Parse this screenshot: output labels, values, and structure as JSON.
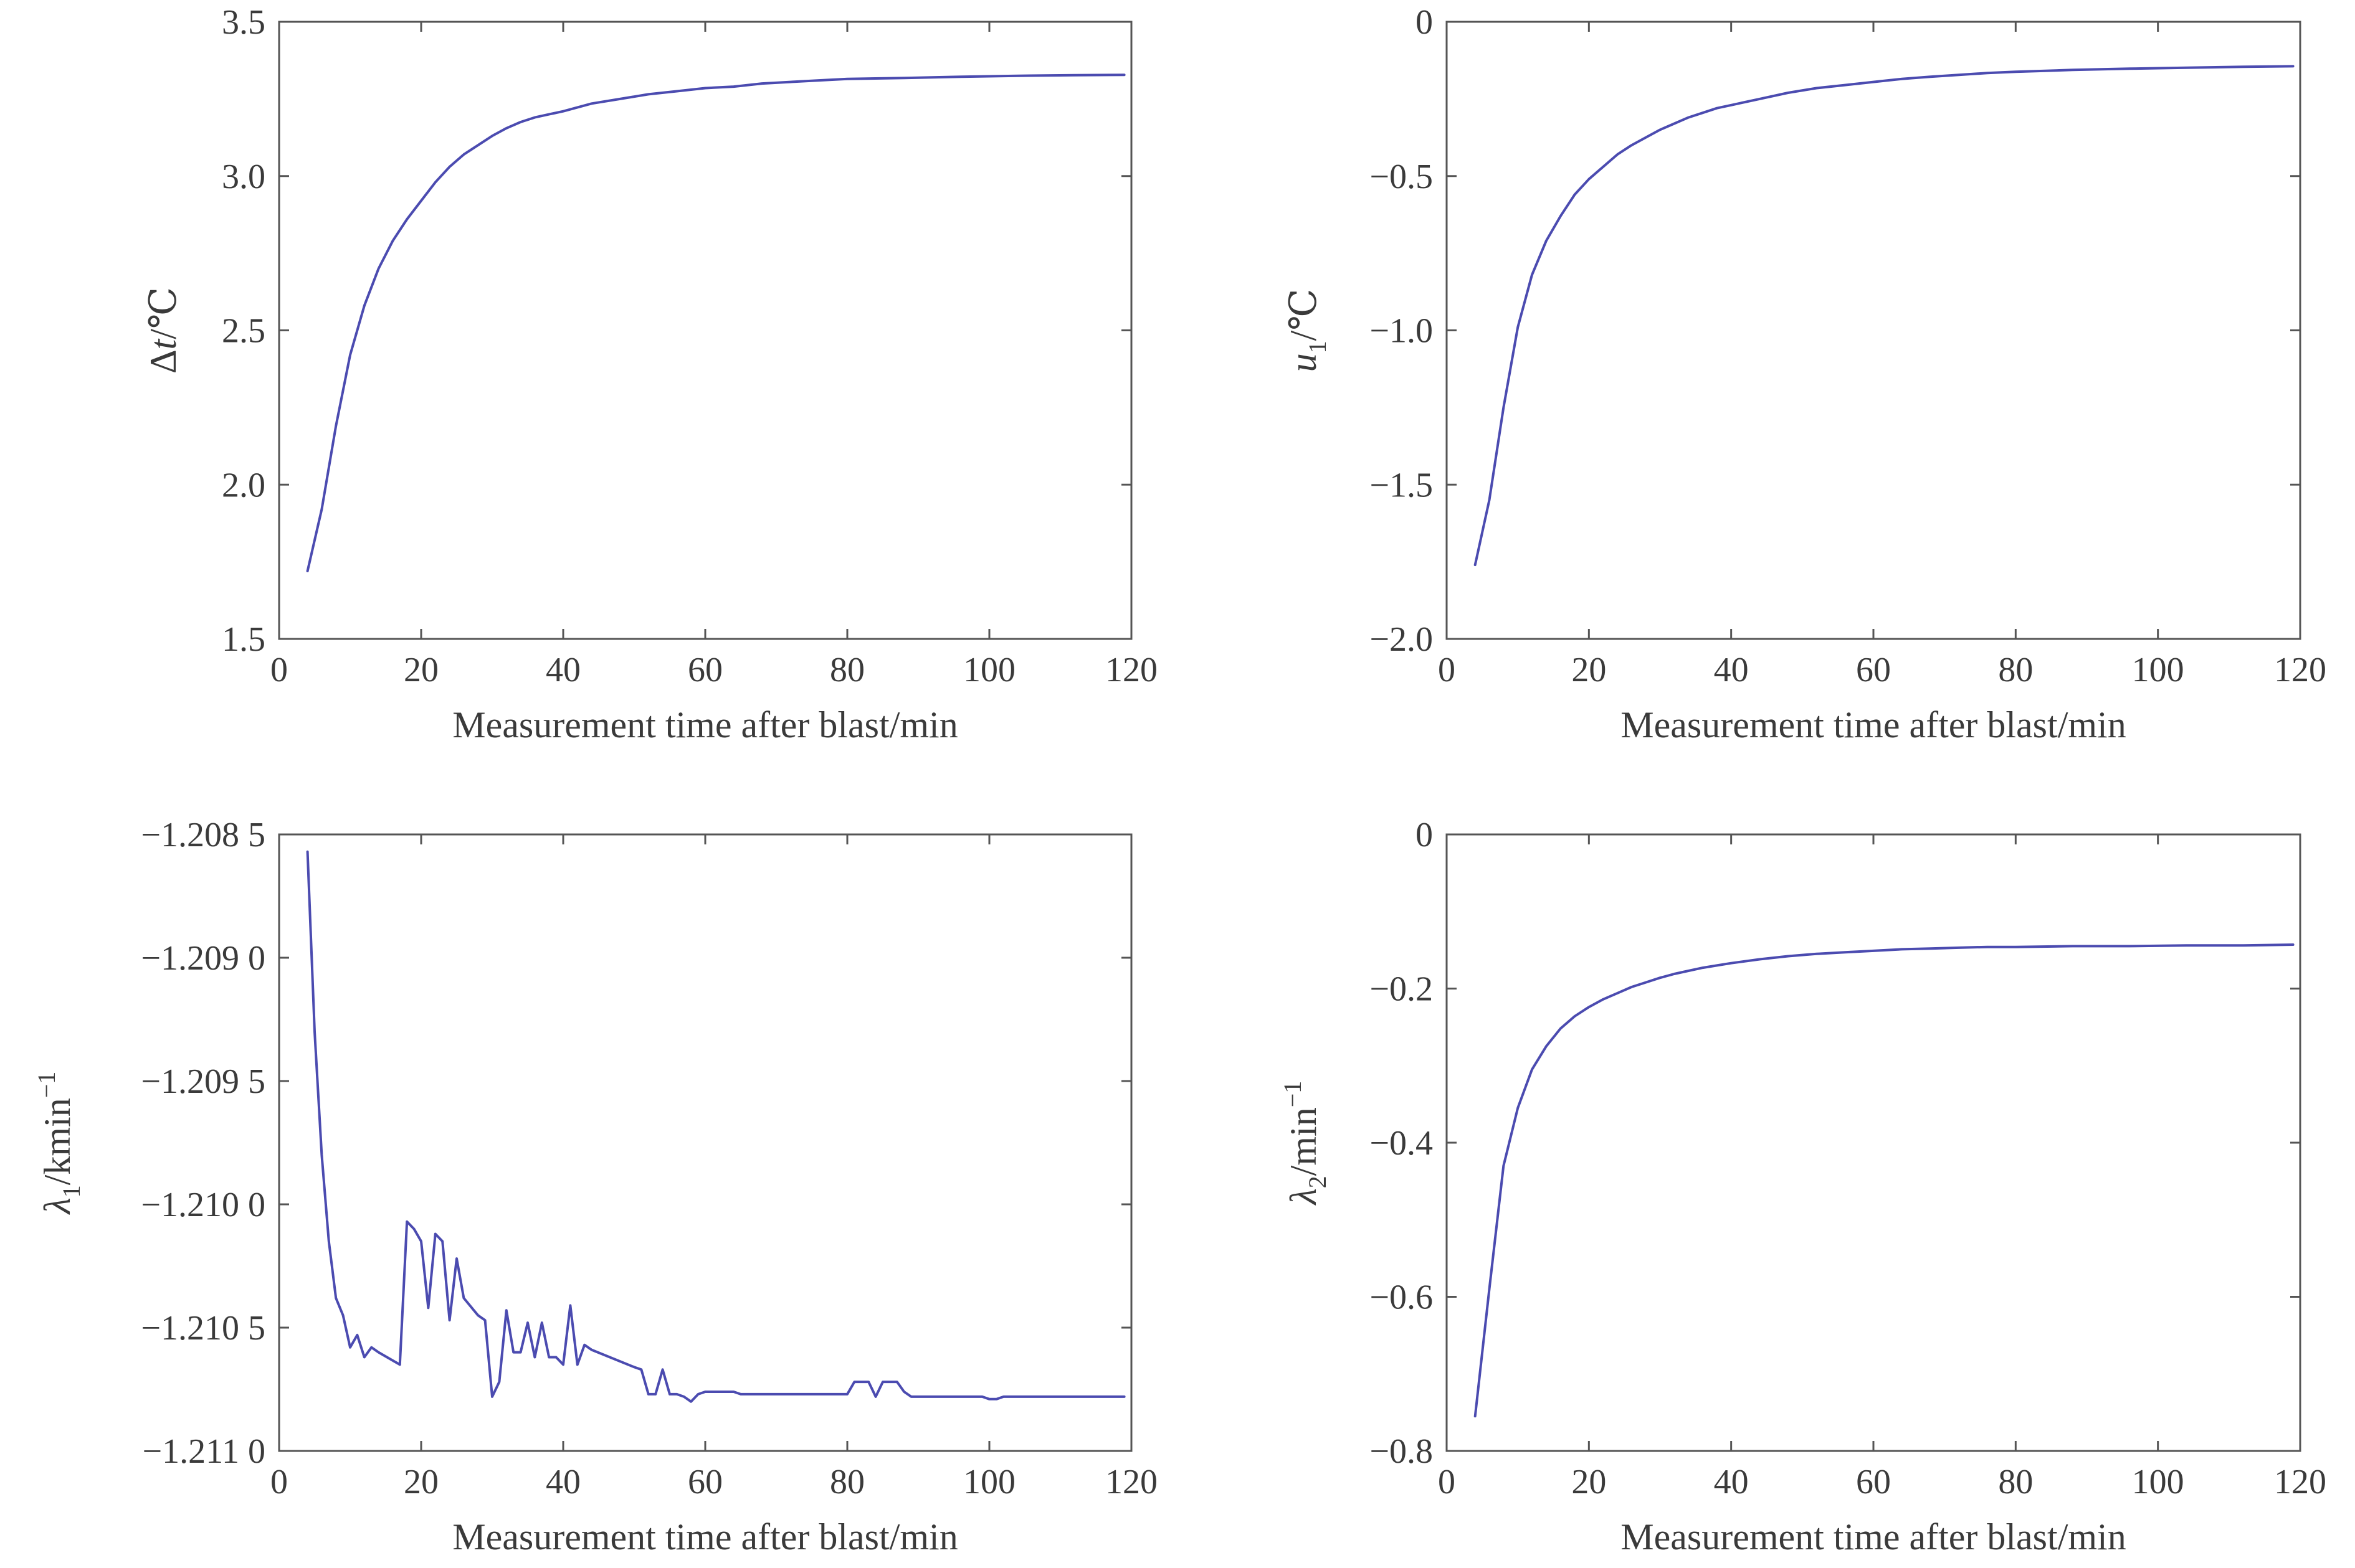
{
  "chart_data": [
    {
      "type": "line",
      "xlabel": "Measurement time after blast/min",
      "ylabel": {
        "main": "Δ",
        "italic": "t",
        "unit": "/℃"
      },
      "xlim": [
        0,
        120
      ],
      "ylim": [
        1.5,
        3.5
      ],
      "xticks": [
        0,
        20,
        40,
        60,
        80,
        100,
        120
      ],
      "xtick_labels": [
        "0",
        "20",
        "40",
        "60",
        "80",
        "100",
        "120"
      ],
      "yticks": [
        1.5,
        2.0,
        2.5,
        3.0,
        3.5
      ],
      "ytick_labels": [
        "1.5",
        "2.0",
        "2.5",
        "3.0",
        "3.5"
      ],
      "color": "#4b4bb0",
      "x": [
        4,
        6,
        8,
        10,
        12,
        14,
        16,
        18,
        20,
        22,
        24,
        26,
        28,
        30,
        32,
        34,
        36,
        38,
        40,
        44,
        48,
        52,
        56,
        60,
        64,
        68,
        72,
        76,
        80,
        88,
        96,
        104,
        112,
        119
      ],
      "y": [
        1.72,
        1.92,
        2.19,
        2.42,
        2.58,
        2.7,
        2.79,
        2.86,
        2.92,
        2.98,
        3.03,
        3.07,
        3.1,
        3.13,
        3.155,
        3.175,
        3.19,
        3.2,
        3.21,
        3.235,
        3.25,
        3.265,
        3.275,
        3.285,
        3.29,
        3.3,
        3.305,
        3.31,
        3.315,
        3.318,
        3.322,
        3.325,
        3.327,
        3.328
      ]
    },
    {
      "type": "line",
      "xlabel": "Measurement time after blast/min",
      "ylabel": {
        "italic": "u",
        "sub": "1",
        "unit": "/℃"
      },
      "xlim": [
        0,
        120
      ],
      "ylim": [
        -2.0,
        0
      ],
      "xticks": [
        0,
        20,
        40,
        60,
        80,
        100,
        120
      ],
      "xtick_labels": [
        "0",
        "20",
        "40",
        "60",
        "80",
        "100",
        "120"
      ],
      "yticks": [
        -2.0,
        -1.5,
        -1.0,
        -0.5,
        0
      ],
      "ytick_labels": [
        "−2.0",
        "−1.5",
        "−1.0",
        "−0.5",
        "0"
      ],
      "color": "#4b4bb0",
      "x": [
        4,
        6,
        8,
        10,
        12,
        14,
        16,
        18,
        20,
        22,
        24,
        26,
        28,
        30,
        32,
        34,
        36,
        38,
        40,
        44,
        48,
        52,
        56,
        60,
        64,
        68,
        72,
        76,
        80,
        88,
        96,
        104,
        112,
        119
      ],
      "y": [
        -1.76,
        -1.55,
        -1.25,
        -0.99,
        -0.82,
        -0.71,
        -0.63,
        -0.56,
        -0.51,
        -0.47,
        -0.43,
        -0.4,
        -0.375,
        -0.35,
        -0.33,
        -0.31,
        -0.295,
        -0.28,
        -0.27,
        -0.25,
        -0.23,
        -0.215,
        -0.205,
        -0.195,
        -0.185,
        -0.178,
        -0.172,
        -0.166,
        -0.162,
        -0.156,
        -0.152,
        -0.149,
        -0.146,
        -0.144
      ]
    },
    {
      "type": "line",
      "xlabel": "Measurement time after blast/min",
      "ylabel": {
        "italic": "λ",
        "sub": "1",
        "unit": "/kmin",
        "sup": "−1"
      },
      "xlim": [
        0,
        120
      ],
      "ylim": [
        -1.211,
        -1.2085
      ],
      "xticks": [
        0,
        20,
        40,
        60,
        80,
        100,
        120
      ],
      "xtick_labels": [
        "0",
        "20",
        "40",
        "60",
        "80",
        "100",
        "120"
      ],
      "yticks": [
        -1.211,
        -1.2105,
        -1.21,
        -1.2095,
        -1.209,
        -1.2085
      ],
      "ytick_labels": [
        "−1.211 0",
        "−1.210 5",
        "−1.210 0",
        "−1.209 5",
        "−1.209 0",
        "−1.208 5"
      ],
      "color": "#4b4bb0",
      "x": [
        4,
        5,
        6,
        7,
        8,
        9,
        10,
        11,
        12,
        13,
        14,
        17,
        18,
        19,
        20,
        21,
        22,
        23,
        24,
        25,
        26,
        28,
        29,
        30,
        31,
        32,
        33,
        34,
        35,
        36,
        37,
        38,
        39,
        40,
        41,
        42,
        43,
        44,
        50,
        51,
        52,
        53,
        54,
        55,
        56,
        57,
        58,
        59,
        60,
        64,
        65,
        66,
        70,
        75,
        80,
        81,
        82,
        83,
        84,
        85,
        86,
        87,
        88,
        89,
        90,
        95,
        99,
        100,
        101,
        102,
        110,
        119
      ],
      "y": [
        -1.20857,
        -1.2093,
        -1.2098,
        -1.21015,
        -1.21038,
        -1.21045,
        -1.21058,
        -1.21053,
        -1.21062,
        -1.21058,
        -1.2106,
        -1.21065,
        -1.21007,
        -1.2101,
        -1.21015,
        -1.21042,
        -1.21012,
        -1.21015,
        -1.21047,
        -1.21022,
        -1.21038,
        -1.21045,
        -1.21047,
        -1.21078,
        -1.21072,
        -1.21043,
        -1.2106,
        -1.2106,
        -1.21048,
        -1.21062,
        -1.21048,
        -1.21062,
        -1.21062,
        -1.21065,
        -1.21041,
        -1.21065,
        -1.21057,
        -1.21059,
        -1.21066,
        -1.21067,
        -1.21077,
        -1.21077,
        -1.21067,
        -1.21077,
        -1.21077,
        -1.21078,
        -1.2108,
        -1.21077,
        -1.21076,
        -1.21076,
        -1.21077,
        -1.21077,
        -1.21077,
        -1.21077,
        -1.21077,
        -1.21072,
        -1.21072,
        -1.21072,
        -1.21078,
        -1.21072,
        -1.21072,
        -1.21072,
        -1.21076,
        -1.21078,
        -1.21078,
        -1.21078,
        -1.21078,
        -1.21079,
        -1.21079,
        -1.21078,
        -1.21078,
        -1.21078
      ]
    },
    {
      "type": "line",
      "xlabel": "Measurement time after blast/min",
      "ylabel": {
        "italic": "λ",
        "sub": "2",
        "unit": "/min",
        "sup": "−1"
      },
      "xlim": [
        0,
        120
      ],
      "ylim": [
        -0.8,
        0
      ],
      "xticks": [
        0,
        20,
        40,
        60,
        80,
        100,
        120
      ],
      "xtick_labels": [
        "0",
        "20",
        "40",
        "60",
        "80",
        "100",
        "120"
      ],
      "yticks": [
        -0.8,
        -0.6,
        -0.4,
        -0.2,
        0
      ],
      "ytick_labels": [
        "−0.8",
        "−0.6",
        "−0.4",
        "−0.2",
        "0"
      ],
      "color": "#4b4bb0",
      "x": [
        4,
        6,
        8,
        10,
        12,
        14,
        16,
        18,
        20,
        22,
        24,
        26,
        28,
        30,
        32,
        34,
        36,
        38,
        40,
        44,
        48,
        52,
        56,
        60,
        64,
        68,
        72,
        76,
        80,
        88,
        96,
        104,
        112,
        119
      ],
      "y": [
        -0.755,
        -0.59,
        -0.43,
        -0.355,
        -0.305,
        -0.275,
        -0.252,
        -0.236,
        -0.224,
        -0.214,
        -0.206,
        -0.198,
        -0.192,
        -0.186,
        -0.181,
        -0.177,
        -0.173,
        -0.17,
        -0.167,
        -0.162,
        -0.158,
        -0.155,
        -0.153,
        -0.151,
        -0.149,
        -0.148,
        -0.147,
        -0.146,
        -0.146,
        -0.145,
        -0.145,
        -0.144,
        -0.144,
        -0.143
      ]
    }
  ]
}
